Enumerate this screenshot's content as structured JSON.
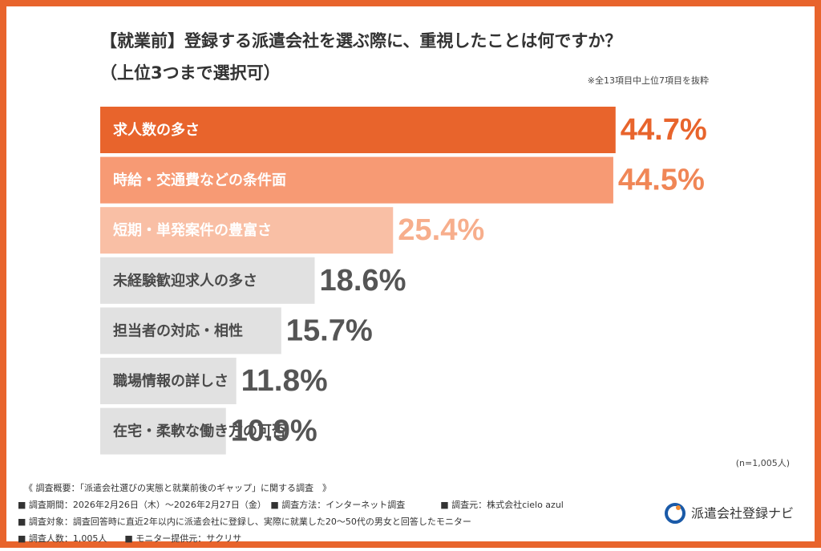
{
  "chart_data": {
    "type": "bar",
    "title": [
      "【就業前】登録する派遣会社を選ぶ際に、重視したことは何ですか？",
      "（上位3つまで選択可）"
    ],
    "note": "※全13項目中上位7項目を抜粋",
    "categories": [
      "求人数の多さ",
      "時給・交通費などの条件面",
      "短期・単発案件の豊富さ",
      "未経験歓迎求人の多さ",
      "担当者の対応・相性",
      "職場情報の詳しさ",
      "在宅・柔軟な働き方の可否"
    ],
    "values": [
      44.7,
      44.5,
      25.4,
      18.6,
      15.7,
      11.8,
      10.9
    ],
    "value_labels": [
      "44.7%",
      "44.5%",
      "25.4%",
      "18.6%",
      "15.7%",
      "11.8%",
      "10.9%"
    ],
    "colors": [
      "#e8642c",
      "#f79a74",
      "#f9bfa5",
      "#e1e1e1",
      "#e1e1e1",
      "#e1e1e1",
      "#e1e1e1"
    ],
    "label_colors": [
      "#ffffff",
      "#ffffff",
      "#ffffff",
      "#4a4a4a",
      "#4a4a4a",
      "#4a4a4a",
      "#4a4a4a"
    ],
    "value_colors": [
      "#e8642c",
      "#f08656",
      "#f7ae8c",
      "#555555",
      "#555555",
      "#555555",
      "#555555"
    ],
    "sample_note": "(n=1,005人)",
    "footer": [
      "《 調査概要：「派遣会社選びの実態と就業前後のギャップ」に関する調査　》",
      "■ 調査期間：2026年2月26日（木）〜2026年2月27日（金）　■ 調査方法：インターネット調査　　　　■ 調査元：株式会社cielo azul",
      "■ 調査対象：調査回答時に直近2年以内に派遣会社に登録し、実際に就業した20〜50代の男女と回答したモニター",
      "■ 調査人数：1,005人　　■ モニター提供元：サクリサ"
    ],
    "brand": "派遣会社登録ナビ"
  }
}
